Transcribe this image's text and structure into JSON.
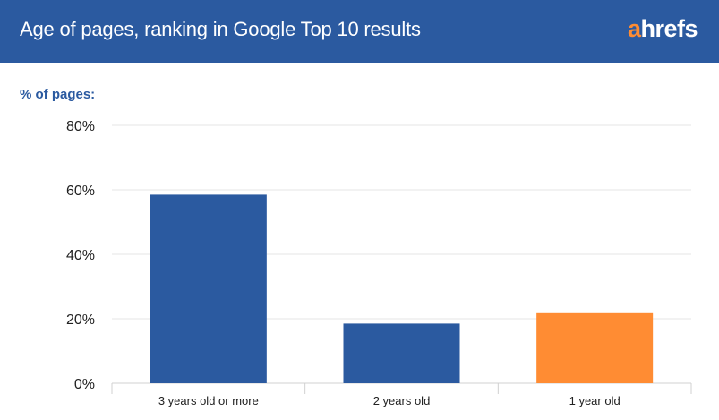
{
  "header": {
    "title": "Age of pages, ranking in Google Top 10 results",
    "logo_a": "a",
    "logo_rest": "hrefs"
  },
  "colors": {
    "header_bg": "#2b5aa0",
    "bar_primary": "#2b5aa0",
    "bar_highlight": "#ff8c33",
    "gridline": "#e6e6e6"
  },
  "chart_data": {
    "type": "bar",
    "title": "Age of pages, ranking in Google Top 10 results",
    "ylabel": "% of pages:",
    "xlabel": "",
    "ylim": [
      0,
      80
    ],
    "yticks": [
      0,
      20,
      40,
      60,
      80
    ],
    "ytick_labels": [
      "0%",
      "20%",
      "40%",
      "60%",
      "80%"
    ],
    "categories": [
      "3 years old or more",
      "2 years old",
      "1 year old"
    ],
    "values": [
      58.5,
      18.5,
      22
    ],
    "bar_colors": [
      "#2b5aa0",
      "#2b5aa0",
      "#ff8c33"
    ],
    "grid": true,
    "legend": "none"
  }
}
